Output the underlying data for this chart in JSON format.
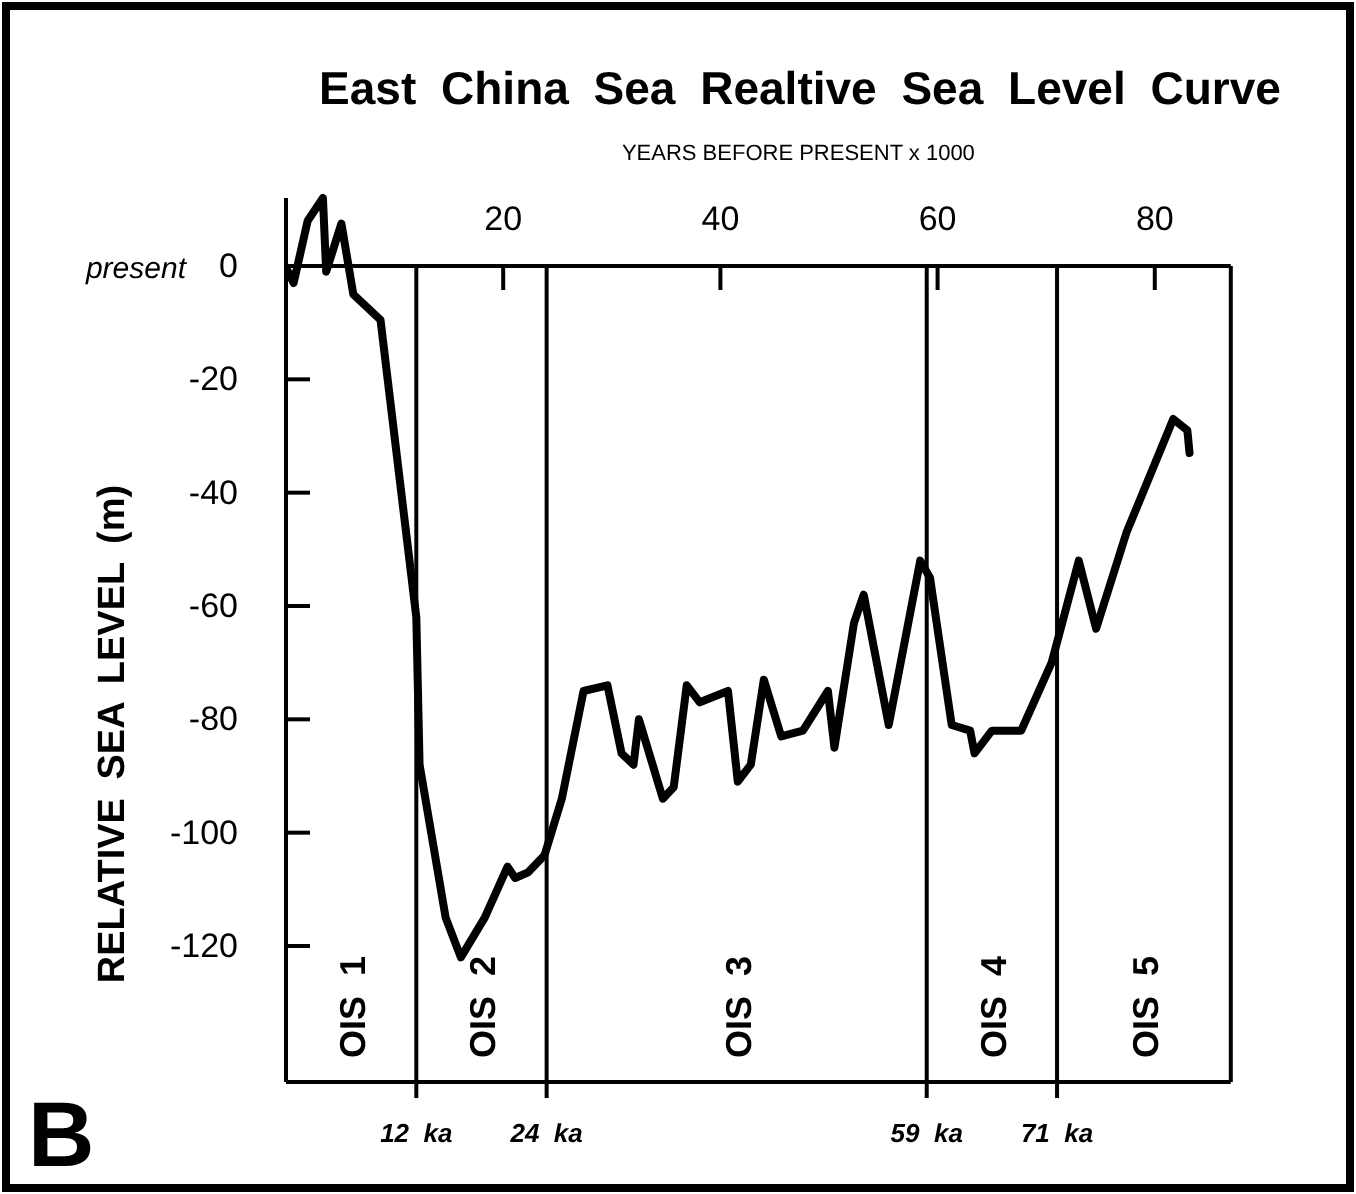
{
  "chart_data": {
    "type": "line",
    "title": "East China Sea Realtive Sea Level Curve",
    "xlabel": "YEARS BEFORE PRESENT x 1000",
    "ylabel": "RELATIVE  SEA  LEVEL  (m)",
    "x": [
      0.2,
      0.7,
      2,
      3.4,
      3.7,
      5.1,
      6.2,
      8.7,
      12,
      12.3,
      14.7,
      16.1,
      18.3,
      20.4,
      21.1,
      22.3,
      23.8,
      25.4,
      27.4,
      29.6,
      30.9,
      32,
      32.5,
      34.7,
      35.7,
      36.9,
      38.1,
      40.7,
      41.6,
      42.8,
      44,
      45.6,
      47.6,
      49.9,
      50.5,
      52.3,
      53.2,
      55.5,
      58.4,
      59.3,
      61.3,
      63,
      63.4,
      65,
      67.7,
      70.5,
      73,
      74.6,
      77.4,
      81.7,
      83,
      83.2
    ],
    "series": [
      {
        "color": "#000000",
        "values": [
          -1,
          -3,
          8,
          12,
          -1,
          7.5,
          -5,
          -9.5,
          -62,
          -88,
          -115,
          -122,
          -115,
          -106,
          -108,
          -107,
          -104,
          -94,
          -75,
          -74,
          -86,
          -88,
          -80,
          -94,
          -92,
          -74,
          -77,
          -75,
          -91,
          -88,
          -73,
          -83,
          -82,
          -75,
          -85,
          -63,
          -58,
          -81,
          -52,
          -55,
          -81,
          -82,
          -86,
          -82,
          -82,
          -70,
          -52,
          -64,
          -47,
          -27,
          -29,
          -33
        ]
      }
    ],
    "xlim": [
      0,
      87
    ],
    "ylim": [
      -144,
      12
    ],
    "xticks": [
      20,
      40,
      60,
      80
    ],
    "yticks": [
      0,
      -20,
      -40,
      -60,
      -80,
      -100,
      -120
    ],
    "grid": false,
    "marker": "none",
    "line_style": "solid",
    "ref_lines": [
      {
        "axis": "x",
        "value": 12,
        "label": "12  ka"
      },
      {
        "axis": "x",
        "value": 24,
        "label": "24  ka"
      },
      {
        "axis": "x",
        "value": 59,
        "label": "59  ka"
      },
      {
        "axis": "x",
        "value": 71,
        "label": "71  ka"
      }
    ],
    "annotations": [
      "present",
      "B",
      "OIS  1",
      "OIS  2",
      "OIS  3",
      "OIS  4",
      "OIS  5"
    ]
  }
}
